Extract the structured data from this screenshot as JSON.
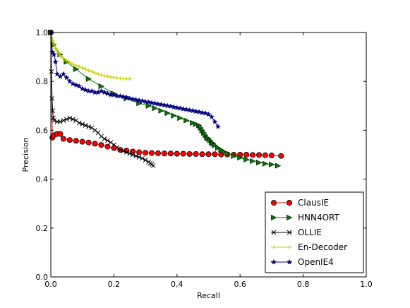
{
  "chart_data": {
    "type": "line",
    "title": "",
    "xlabel": "Recall",
    "ylabel": "Precision",
    "xlim": [
      0.0,
      1.0
    ],
    "ylim": [
      0.0,
      1.0
    ],
    "xticks": [
      "0.0",
      "0.2",
      "0.4",
      "0.6",
      "0.8",
      "1.0"
    ],
    "yticks": [
      "0.0",
      "0.2",
      "0.4",
      "0.6",
      "0.8",
      "1.0"
    ],
    "grid": false,
    "legend_position": "bottom-right",
    "series": [
      {
        "name": "ClausIE",
        "color": "#ff0000",
        "marker": "circle",
        "x": [
          0.0,
          0.005,
          0.01,
          0.02,
          0.03,
          0.04,
          0.06,
          0.08,
          0.1,
          0.12,
          0.14,
          0.16,
          0.18,
          0.2,
          0.22,
          0.24,
          0.26,
          0.28,
          0.3,
          0.32,
          0.34,
          0.36,
          0.38,
          0.4,
          0.42,
          0.44,
          0.46,
          0.48,
          0.5,
          0.52,
          0.54,
          0.56,
          0.58,
          0.6,
          0.62,
          0.64,
          0.66,
          0.68,
          0.7,
          0.73
        ],
        "y": [
          1.0,
          0.57,
          0.58,
          0.585,
          0.585,
          0.565,
          0.56,
          0.557,
          0.553,
          0.55,
          0.545,
          0.54,
          0.533,
          0.527,
          0.52,
          0.517,
          0.513,
          0.51,
          0.508,
          0.507,
          0.506,
          0.505,
          0.505,
          0.504,
          0.504,
          0.503,
          0.503,
          0.502,
          0.502,
          0.502,
          0.501,
          0.501,
          0.5,
          0.5,
          0.5,
          0.499,
          0.499,
          0.498,
          0.497,
          0.495
        ]
      },
      {
        "name": "HNN4ORT",
        "color": "#007f00",
        "marker": "triangle-right",
        "x": [
          0.0,
          0.01,
          0.03,
          0.05,
          0.08,
          0.12,
          0.16,
          0.2,
          0.24,
          0.28,
          0.31,
          0.33,
          0.35,
          0.37,
          0.39,
          0.41,
          0.43,
          0.45,
          0.46,
          0.47,
          0.475,
          0.48,
          0.485,
          0.49,
          0.495,
          0.5,
          0.505,
          0.51,
          0.515,
          0.52,
          0.53,
          0.54,
          0.55,
          0.56,
          0.58,
          0.6,
          0.62,
          0.64,
          0.66,
          0.68,
          0.7,
          0.72
        ],
        "y": [
          1.0,
          0.95,
          0.91,
          0.88,
          0.85,
          0.81,
          0.78,
          0.75,
          0.73,
          0.71,
          0.7,
          0.69,
          0.68,
          0.67,
          0.66,
          0.65,
          0.64,
          0.63,
          0.625,
          0.62,
          0.61,
          0.6,
          0.59,
          0.58,
          0.57,
          0.565,
          0.558,
          0.55,
          0.545,
          0.538,
          0.528,
          0.52,
          0.512,
          0.505,
          0.495,
          0.488,
          0.48,
          0.474,
          0.468,
          0.463,
          0.46,
          0.455
        ]
      },
      {
        "name": "OLLIE",
        "color": "#000000",
        "marker": "x",
        "x": [
          0.0,
          0.002,
          0.004,
          0.006,
          0.008,
          0.01,
          0.02,
          0.03,
          0.04,
          0.05,
          0.06,
          0.07,
          0.08,
          0.09,
          0.1,
          0.11,
          0.12,
          0.13,
          0.14,
          0.15,
          0.16,
          0.17,
          0.18,
          0.19,
          0.2,
          0.21,
          0.22,
          0.23,
          0.24,
          0.25,
          0.26,
          0.27,
          0.28,
          0.29,
          0.3,
          0.31,
          0.315,
          0.32,
          0.325
        ],
        "y": [
          1.0,
          0.84,
          0.73,
          0.68,
          0.65,
          0.64,
          0.635,
          0.635,
          0.64,
          0.645,
          0.65,
          0.645,
          0.64,
          0.63,
          0.625,
          0.62,
          0.615,
          0.61,
          0.6,
          0.59,
          0.575,
          0.565,
          0.558,
          0.55,
          0.54,
          0.53,
          0.52,
          0.515,
          0.51,
          0.505,
          0.5,
          0.495,
          0.49,
          0.485,
          0.478,
          0.47,
          0.465,
          0.46,
          0.455
        ]
      },
      {
        "name": "En-Decoder",
        "color": "#cccc00",
        "marker": "plus",
        "x": [
          0.0,
          0.003,
          0.006,
          0.01,
          0.015,
          0.02,
          0.025,
          0.03,
          0.04,
          0.05,
          0.06,
          0.07,
          0.08,
          0.09,
          0.1,
          0.11,
          0.12,
          0.13,
          0.14,
          0.15,
          0.16,
          0.17,
          0.18,
          0.19,
          0.2,
          0.21,
          0.22,
          0.23,
          0.24,
          0.25
        ],
        "y": [
          1.0,
          0.98,
          0.965,
          0.95,
          0.935,
          0.925,
          0.915,
          0.905,
          0.895,
          0.885,
          0.878,
          0.87,
          0.865,
          0.86,
          0.855,
          0.85,
          0.845,
          0.84,
          0.835,
          0.83,
          0.826,
          0.823,
          0.82,
          0.818,
          0.816,
          0.814,
          0.812,
          0.811,
          0.81,
          0.81
        ]
      },
      {
        "name": "OpenIE4",
        "color": "#00007f",
        "marker": "star",
        "x": [
          0.0,
          0.005,
          0.01,
          0.015,
          0.02,
          0.03,
          0.04,
          0.05,
          0.06,
          0.07,
          0.08,
          0.09,
          0.1,
          0.11,
          0.12,
          0.13,
          0.14,
          0.15,
          0.16,
          0.17,
          0.18,
          0.19,
          0.2,
          0.21,
          0.22,
          0.23,
          0.24,
          0.25,
          0.26,
          0.27,
          0.28,
          0.29,
          0.3,
          0.31,
          0.32,
          0.33,
          0.34,
          0.35,
          0.36,
          0.37,
          0.38,
          0.39,
          0.4,
          0.41,
          0.42,
          0.43,
          0.44,
          0.45,
          0.46,
          0.47,
          0.48,
          0.49,
          0.5,
          0.51,
          0.52,
          0.53
        ],
        "y": [
          1.0,
          0.92,
          0.91,
          0.88,
          0.83,
          0.82,
          0.83,
          0.815,
          0.8,
          0.79,
          0.785,
          0.78,
          0.77,
          0.765,
          0.76,
          0.76,
          0.755,
          0.755,
          0.76,
          0.755,
          0.75,
          0.745,
          0.745,
          0.74,
          0.74,
          0.737,
          0.735,
          0.73,
          0.727,
          0.725,
          0.722,
          0.72,
          0.717,
          0.715,
          0.712,
          0.71,
          0.707,
          0.705,
          0.703,
          0.7,
          0.698,
          0.695,
          0.692,
          0.69,
          0.687,
          0.685,
          0.682,
          0.68,
          0.677,
          0.675,
          0.672,
          0.67,
          0.665,
          0.655,
          0.635,
          0.615
        ]
      }
    ]
  }
}
